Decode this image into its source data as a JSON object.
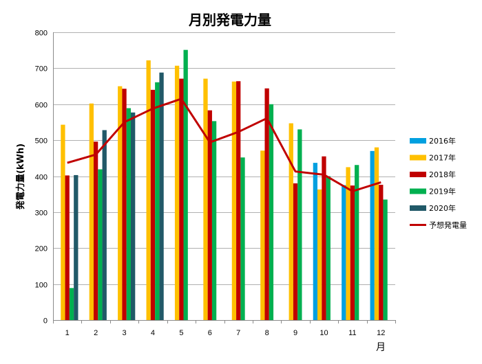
{
  "chart_data": {
    "type": "bar",
    "title": "月別発電力量",
    "ylabel": "発電力量(kWh)",
    "xlabel": "月",
    "categories": [
      "1",
      "2",
      "3",
      "4",
      "5",
      "6",
      "7",
      "8",
      "9",
      "10",
      "11",
      "12"
    ],
    "ylim": [
      0,
      800
    ],
    "yticks": [
      0,
      100,
      200,
      300,
      400,
      500,
      600,
      700,
      800
    ],
    "grid": true,
    "legend_position": "right",
    "series": [
      {
        "name": "2016年",
        "color": "#00a0e0",
        "values": [
          null,
          null,
          null,
          null,
          null,
          null,
          null,
          null,
          null,
          437,
          375,
          470
        ]
      },
      {
        "name": "2017年",
        "color": "#ffc000",
        "values": [
          543,
          602,
          650,
          722,
          707,
          671,
          663,
          471,
          547,
          363,
          425,
          480
        ]
      },
      {
        "name": "2018年",
        "color": "#c00000",
        "values": [
          402,
          496,
          643,
          640,
          671,
          583,
          664,
          644,
          380,
          455,
          374,
          376
        ]
      },
      {
        "name": "2019年",
        "color": "#00b050",
        "values": [
          89,
          419,
          589,
          661,
          751,
          553,
          452,
          600,
          530,
          400,
          431,
          335
        ]
      },
      {
        "name": "2020年",
        "color": "#215968",
        "values": [
          403,
          528,
          577,
          688,
          null,
          null,
          null,
          null,
          null,
          null,
          null,
          null
        ]
      }
    ],
    "line": {
      "name": "予想発電量",
      "color": "#c00000",
      "type": "line",
      "values": [
        437,
        460,
        550,
        588,
        615,
        494,
        523,
        561,
        413,
        404,
        358,
        383
      ]
    }
  }
}
